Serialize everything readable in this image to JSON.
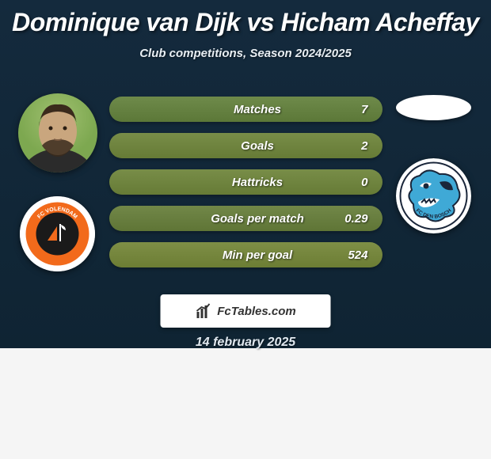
{
  "page_title": "Dominique van Dijk vs Hicham Acheffay",
  "subtitle": "Club competitions, Season 2024/2025",
  "date": "14 february 2025",
  "branding": {
    "text": "FcTables.com",
    "text_color": "#333333",
    "background": "#ffffff"
  },
  "colors": {
    "background_top": "#142a3d",
    "background_bottom": "#0f2433",
    "below_background": "#f5f5f5",
    "title_color": "#ffffff",
    "subtitle_color": "#e8eef3"
  },
  "left_player": {
    "name": "Dominique van Dijk",
    "photo": {
      "skin": "#c9a67e",
      "hair": "#3a2a1c",
      "bg1": "#7da850",
      "bg2": "#a0c070"
    },
    "club": {
      "name": "FC Volendam",
      "bg": "#ffffff",
      "ring": "#f26a1b",
      "inner": "#1a1a1a",
      "label": "FC VOLENDAM",
      "label_color": "#f26a1b"
    }
  },
  "right_player": {
    "name": "Hicham Acheffay",
    "club": {
      "name": "FC Den Bosch",
      "bg": "#ffffff",
      "accent": "#3fa9d6",
      "dark": "#1a263a",
      "label": "FC DEN BOSCH"
    }
  },
  "stats": [
    {
      "label": "Matches",
      "value": "7",
      "bg": "#6e8a4a"
    },
    {
      "label": "Goals",
      "value": "2",
      "bg": "#788d48"
    },
    {
      "label": "Hattricks",
      "value": "0",
      "bg": "#788d48"
    },
    {
      "label": "Goals per match",
      "value": "0.29",
      "bg": "#718748"
    },
    {
      "label": "Min per goal",
      "value": "524",
      "bg": "#7e8f46"
    }
  ]
}
